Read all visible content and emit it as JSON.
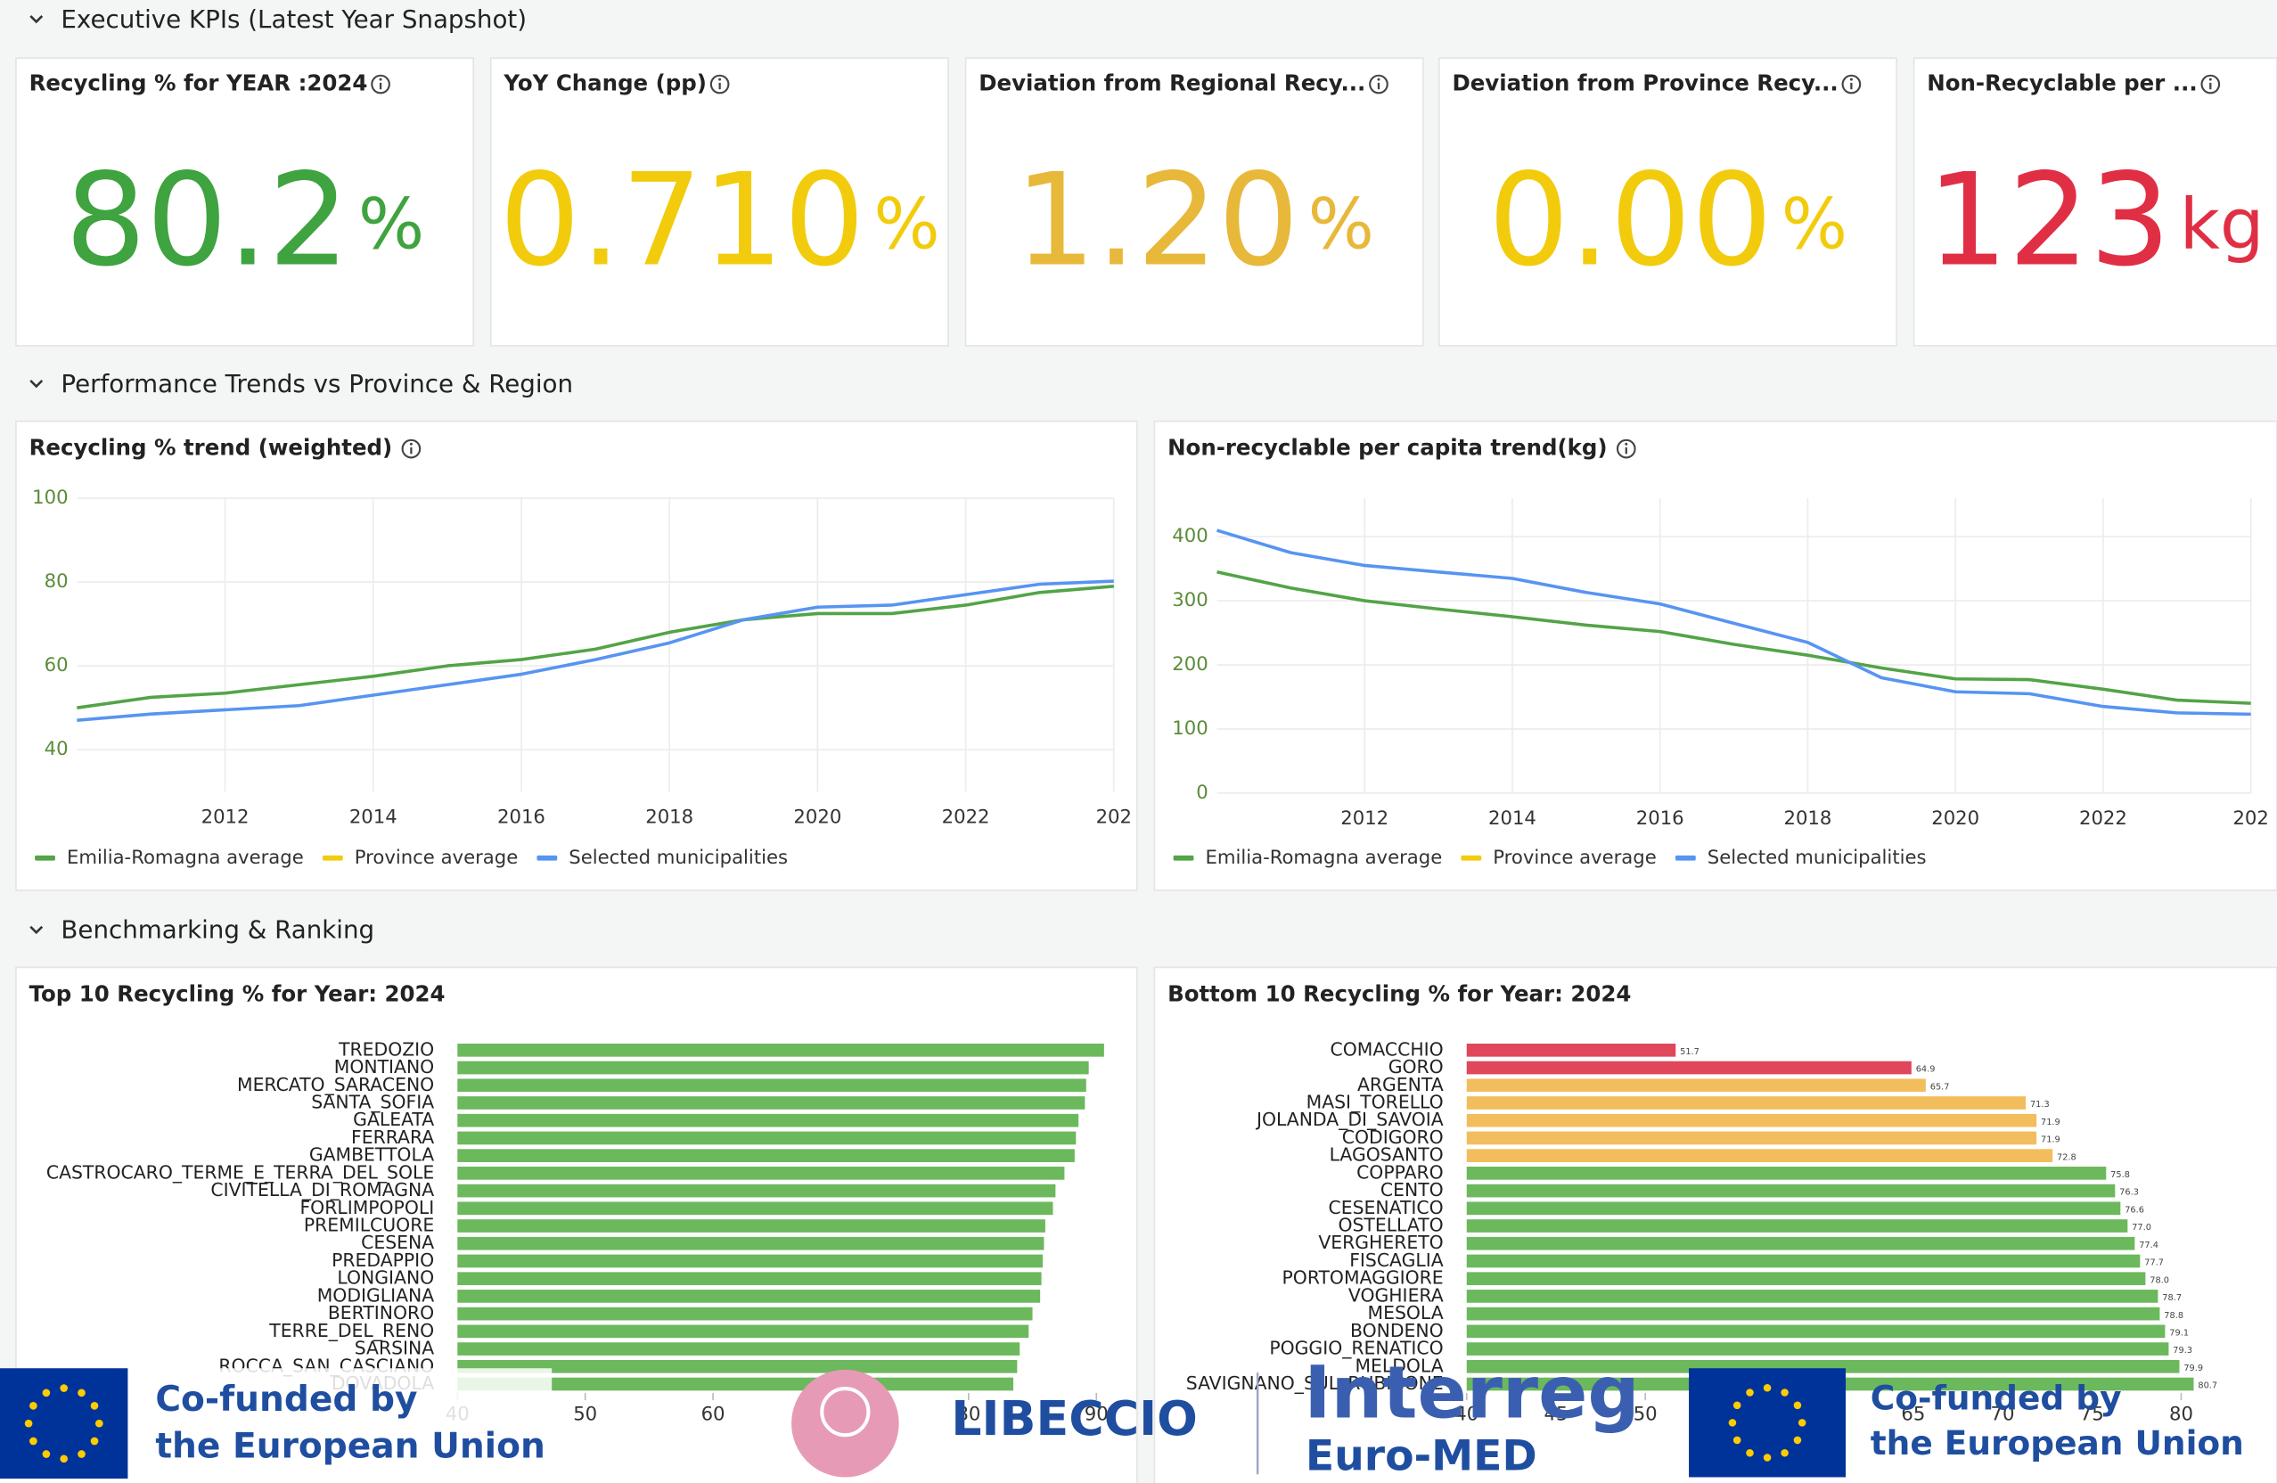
{
  "sections": [
    "Executive KPIs (Latest Year Snapshot)",
    "Performance Trends vs Province & Region",
    "Benchmarking & Ranking"
  ],
  "kpis": [
    {
      "title": "Recycling % for YEAR :2024",
      "value": "80.2",
      "unit": "%",
      "color": "#3fa33f"
    },
    {
      "title": "YoY Change (pp)",
      "value": "0.710",
      "unit": "%",
      "color": "#f2cc0c"
    },
    {
      "title": "Deviation from Regional Recy...",
      "value": "1.20",
      "unit": "%",
      "color": "#e8b83a"
    },
    {
      "title": "Deviation from Province Recy...",
      "value": "0.00",
      "unit": "%",
      "color": "#f2cc0c"
    },
    {
      "title": "Non-Recyclable per ...",
      "value": "123",
      "unit": "kg",
      "color": "#e02f44"
    }
  ],
  "chart_data": [
    {
      "type": "line",
      "title": "Recycling % trend (weighted)",
      "x": [
        2010,
        2011,
        2012,
        2013,
        2014,
        2015,
        2016,
        2017,
        2018,
        2019,
        2020,
        2021,
        2022,
        2023,
        2024
      ],
      "xlim": [
        2010,
        2024
      ],
      "xticks": [
        2012,
        2014,
        2016,
        2018,
        2020,
        2022,
        {
          "value": 2024,
          "label": "202"
        }
      ],
      "ylim": [
        30,
        100
      ],
      "yticks": [
        40,
        60,
        80,
        100
      ],
      "grid": true,
      "series": [
        {
          "name": "Emilia-Romagna average",
          "color": "#52a447",
          "values": [
            50,
            52.5,
            53.5,
            55.5,
            57.5,
            60,
            61.5,
            64,
            68,
            71,
            72.5,
            72.5,
            74.5,
            77.5,
            79
          ]
        },
        {
          "name": "Province average",
          "color": "#f2cc0c",
          "values": [
            null,
            null,
            null,
            null,
            null,
            null,
            null,
            null,
            null,
            null,
            null,
            null,
            null,
            null,
            null
          ]
        },
        {
          "name": "Selected municipalities",
          "color": "#5794f2",
          "values": [
            47,
            48.5,
            49.5,
            50.5,
            53,
            55.5,
            58,
            61.5,
            65.5,
            71,
            74,
            74.5,
            77,
            79.5,
            80.2
          ]
        }
      ]
    },
    {
      "type": "line",
      "title": "Non-recyclable per capita trend(kg)",
      "x": [
        2010,
        2011,
        2012,
        2013,
        2014,
        2015,
        2016,
        2017,
        2018,
        2019,
        2020,
        2021,
        2022,
        2023,
        2024
      ],
      "xlim": [
        2010,
        2024
      ],
      "xticks": [
        2012,
        2014,
        2016,
        2018,
        2020,
        2022,
        {
          "value": 2024,
          "label": "202"
        }
      ],
      "ylim": [
        0,
        460
      ],
      "yticks": [
        0,
        100,
        200,
        300,
        400
      ],
      "grid": true,
      "series": [
        {
          "name": "Emilia-Romagna average",
          "color": "#52a447",
          "values": [
            345,
            320,
            300,
            287,
            275,
            262,
            252,
            232,
            215,
            195,
            178,
            177,
            162,
            145,
            140
          ]
        },
        {
          "name": "Province average",
          "color": "#f2cc0c",
          "values": [
            null,
            null,
            null,
            null,
            null,
            null,
            null,
            null,
            null,
            null,
            null,
            null,
            null,
            null,
            null
          ]
        },
        {
          "name": "Selected municipalities",
          "color": "#5794f2",
          "values": [
            410,
            375,
            355,
            345,
            335,
            313,
            295,
            265,
            235,
            180,
            158,
            155,
            135,
            125,
            123
          ]
        }
      ]
    },
    {
      "type": "hbar",
      "title": "Top 10 Recycling % for Year: 2024",
      "categories": [
        "TREDOZIO",
        "MONTIANO",
        "MERCATO_SARACENO",
        "SANTA_SOFIA",
        "GALEATA",
        "FERRARA",
        "GAMBETTOLA",
        "CASTROCARO_TERME_E_TERRA_DEL_SOLE",
        "CIVITELLA_DI_ROMAGNA",
        "FORLIMPOPOLI",
        "PREMILCUORE",
        "CESENA",
        "PREDAPPIO",
        "LONGIANO",
        "MODIGLIANA",
        "BERTINORO",
        "TERRE_DEL_RENO",
        "SARSINA",
        "ROCCA_SAN_CASCIANO",
        "DOVADOLA"
      ],
      "values": [
        90.6,
        89.4,
        89.2,
        89.1,
        88.6,
        88.4,
        88.3,
        87.5,
        86.8,
        86.6,
        86.0,
        85.9,
        85.8,
        85.7,
        85.6,
        85.0,
        84.7,
        84.0,
        83.8,
        83.5
      ],
      "color": "#6cb85c",
      "xlim": [
        40,
        92
      ],
      "xticks": [
        40,
        50,
        60,
        70,
        80,
        90
      ]
    },
    {
      "type": "hbar",
      "title": "Bottom 10 Recycling % for Year: 2024",
      "categories": [
        "COMACCHIO",
        "GORO",
        "ARGENTA",
        "MASI_TORELLO",
        "JOLANDA_DI_SAVOIA",
        "CODIGORO",
        "LAGOSANTO",
        "COPPARO",
        "CENTO",
        "CESENATICO",
        "OSTELLATO",
        "VERGHERETO",
        "FISCAGLIA",
        "PORTOMAGGIORE",
        "VOGHIERA",
        "MESOLA",
        "BONDENO",
        "POGGIO_RENATICO",
        "MELDOLA",
        "SAVIGNANO_SUL_RUBICONE"
      ],
      "values": [
        51.7,
        64.9,
        65.7,
        71.3,
        71.9,
        71.9,
        72.8,
        75.8,
        76.3,
        76.6,
        77.0,
        77.4,
        77.7,
        78.0,
        78.7,
        78.8,
        79.1,
        79.3,
        79.9,
        80.7
      ],
      "value_labels": [
        "51.7",
        "64.9",
        "65.7",
        "71.3",
        "71.9",
        "71.9",
        "72.8",
        "75.8",
        "76.3",
        "76.6",
        "77.0",
        "77.4",
        "77.7",
        "78.0",
        "78.7",
        "78.8",
        "79.1",
        "79.3",
        "79.9",
        "80.7"
      ],
      "colors": [
        "#e0475b",
        "#e0475b",
        "#f2bd5c",
        "#f2bd5c",
        "#f2bd5c",
        "#f2bd5c",
        "#f2bd5c",
        "#6cb85c",
        "#6cb85c",
        "#6cb85c",
        "#6cb85c",
        "#6cb85c",
        "#6cb85c",
        "#6cb85c",
        "#6cb85c",
        "#6cb85c",
        "#6cb85c",
        "#6cb85c",
        "#6cb85c",
        "#6cb85c"
      ],
      "xlim": [
        40,
        82
      ],
      "xticks": [
        40,
        45,
        50,
        55,
        60,
        65,
        70,
        75,
        80
      ]
    }
  ],
  "footer": {
    "cofunded_line1": "Co-funded by",
    "cofunded_line2": "the European Union",
    "project": "LIBECCIO",
    "program": "Interreg",
    "program_sub": "Euro-MED"
  }
}
